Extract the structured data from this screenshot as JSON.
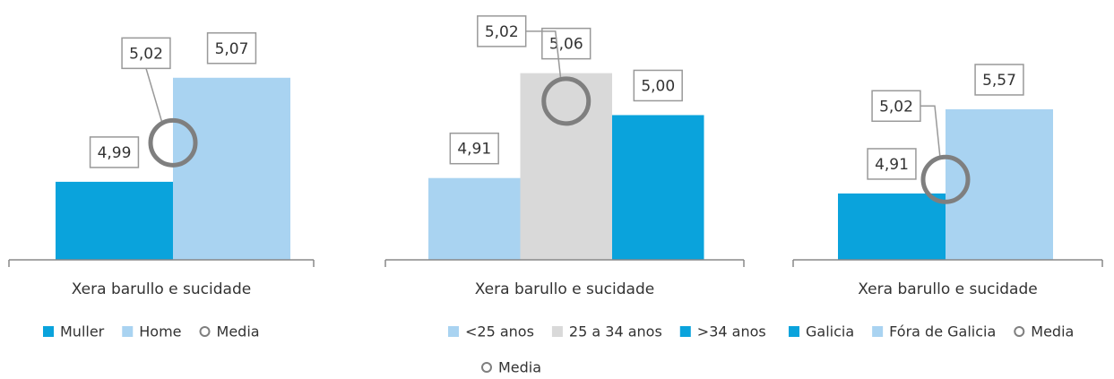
{
  "chart_data": [
    {
      "type": "bar",
      "categories": [
        "Xera barullo e sucidade"
      ],
      "ylim": [
        4.93,
        5.116
      ],
      "series": [
        {
          "name": "Muller",
          "color": "#0aa3dc",
          "values": [
            4.99
          ],
          "value_labels": [
            "4,99"
          ]
        },
        {
          "name": "Home",
          "color": "#a9d3f1",
          "values": [
            5.07
          ],
          "value_labels": [
            "5,07"
          ]
        },
        {
          "name": "Media",
          "color": "#7f7f7f",
          "marker": "circle",
          "values": [
            5.02
          ],
          "value_labels": [
            "5,02"
          ]
        }
      ]
    },
    {
      "type": "bar",
      "categories": [
        "Xera barullo e sucidade"
      ],
      "ylim": [
        4.793,
        5.139
      ],
      "series": [
        {
          "name": "<25 anos",
          "color": "#a9d3f1",
          "values": [
            4.91
          ],
          "value_labels": [
            "4,91"
          ]
        },
        {
          "name": "25 a 34 anos",
          "color": "#d9d9d9",
          "values": [
            5.06
          ],
          "value_labels": [
            "5,06"
          ]
        },
        {
          "name": ">34 anos",
          "color": "#0aa3dc",
          "values": [
            5.0
          ],
          "value_labels": [
            "5,00"
          ]
        },
        {
          "name": "Media",
          "color": "#7f7f7f",
          "marker": "circle",
          "values": [
            5.02
          ],
          "value_labels": [
            "5,02"
          ]
        }
      ]
    },
    {
      "type": "bar",
      "categories": [
        "Xera barullo e sucidade"
      ],
      "ylim": [
        4.39,
        6.286
      ],
      "series": [
        {
          "name": "Galicia",
          "color": "#0aa3dc",
          "values": [
            4.91
          ],
          "value_labels": [
            "4,91"
          ]
        },
        {
          "name": "Fóra de Galicia",
          "color": "#a9d3f1",
          "values": [
            5.57
          ],
          "value_labels": [
            "5,57"
          ]
        },
        {
          "name": "Media",
          "color": "#7f7f7f",
          "marker": "circle",
          "values": [
            5.02
          ],
          "value_labels": [
            "5,02"
          ]
        }
      ]
    }
  ]
}
